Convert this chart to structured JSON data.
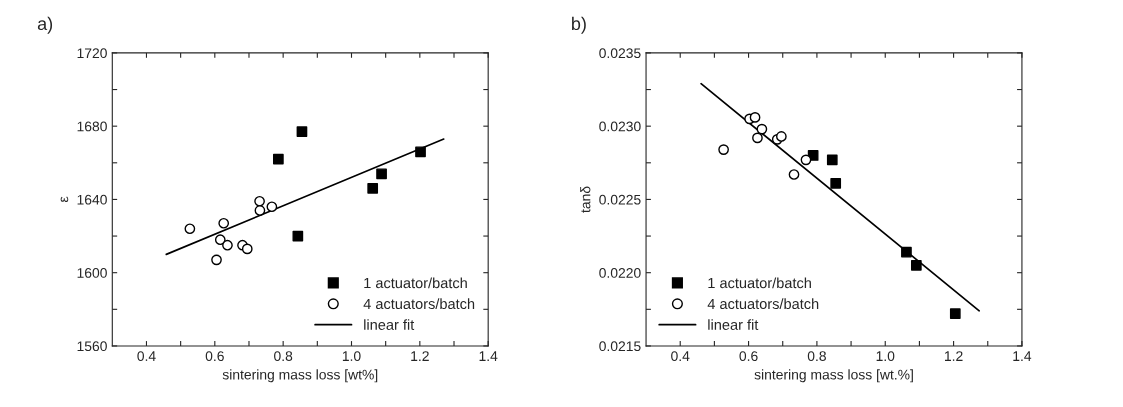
{
  "chart_data": [
    {
      "type": "scatter",
      "title": "a)",
      "xlabel": "sintering mass loss [wt%]",
      "ylabel": "ε",
      "xlim": [
        0.3,
        1.4
      ],
      "ylim": [
        1560,
        1720
      ],
      "xticks": [
        0.4,
        {
          "value": 0.5,
          "label": null
        },
        0.6,
        {
          "value": 0.7,
          "label": null
        },
        0.8,
        {
          "value": 0.9,
          "label": null
        },
        {
          "value": 1.0,
          "label": "1.0"
        },
        {
          "value": 1.1,
          "label": null
        },
        1.2,
        {
          "value": 1.3,
          "label": null
        },
        1.4
      ],
      "yticks": [
        1560,
        {
          "value": 1580,
          "label": null
        },
        1600,
        {
          "value": 1620,
          "label": null
        },
        1640,
        {
          "value": 1660,
          "label": null
        },
        1680,
        {
          "value": 1700,
          "label": null
        },
        1720
      ],
      "legend": "bottom right",
      "grid": false,
      "series": [
        {
          "name": "1 actuator/batch",
          "marker": "square",
          "color": "#000000",
          "x": [
            0.786,
            0.855,
            0.843,
            1.062,
            1.088,
            1.202
          ],
          "values": [
            1662,
            1677,
            1620,
            1646,
            1654,
            1666
          ]
        },
        {
          "name": "4 actuators/batch",
          "marker": "circle",
          "color": "#ffffff",
          "x": [
            0.527,
            0.605,
            0.616,
            0.626,
            0.637,
            0.681,
            0.695,
            0.731,
            0.732,
            0.767
          ],
          "values": [
            1624,
            1607,
            1618,
            1627,
            1615,
            1615,
            1613,
            1639,
            1634,
            1636
          ]
        },
        {
          "name": "linear fit",
          "type": "line",
          "marker": "none",
          "color": "#000000",
          "x": [
            0.458,
            1.27
          ],
          "values": [
            1610,
            1673
          ]
        }
      ]
    },
    {
      "type": "scatter",
      "title": "b)",
      "xlabel": "sintering mass loss [wt.%]",
      "ylabel": "tanδ",
      "xlim": [
        0.3,
        1.4
      ],
      "ylim": [
        0.0215,
        0.0235
      ],
      "xticks": [
        0.4,
        {
          "value": 0.5,
          "label": null
        },
        0.6,
        {
          "value": 0.7,
          "label": null
        },
        0.8,
        {
          "value": 0.9,
          "label": null
        },
        {
          "value": 1.0,
          "label": "1.0"
        },
        {
          "value": 1.1,
          "label": null
        },
        1.2,
        {
          "value": 1.3,
          "label": null
        },
        1.4
      ],
      "yticks": [
        0.0215,
        {
          "value": 0.02175,
          "label": null
        },
        {
          "value": 0.022,
          "label": "0.0220"
        },
        {
          "value": 0.02225,
          "label": null
        },
        0.0225,
        {
          "value": 0.02275,
          "label": null
        },
        {
          "value": 0.023,
          "label": "0.0230"
        },
        {
          "value": 0.02325,
          "label": null
        },
        0.0235
      ],
      "legend": "bottom left",
      "grid": false,
      "series": [
        {
          "name": "1 actuator/batch",
          "marker": "square",
          "color": "#000000",
          "x": [
            0.789,
            0.845,
            0.855,
            1.062,
            1.091,
            1.205
          ],
          "values": [
            0.0228,
            0.02277,
            0.02261,
            0.02214,
            0.02205,
            0.02172
          ]
        },
        {
          "name": "4 actuators/batch",
          "marker": "circle",
          "color": "#ffffff",
          "x": [
            0.527,
            0.603,
            0.619,
            0.639,
            0.626,
            0.684,
            0.696,
            0.733,
            0.768
          ],
          "values": [
            0.02284,
            0.02305,
            0.02306,
            0.02298,
            0.02292,
            0.02291,
            0.02293,
            0.02267,
            0.02277
          ]
        },
        {
          "name": "linear fit",
          "type": "line",
          "marker": "none",
          "color": "#000000",
          "x": [
            0.461,
            1.275
          ],
          "values": [
            0.02329,
            0.02174
          ]
        }
      ]
    }
  ]
}
